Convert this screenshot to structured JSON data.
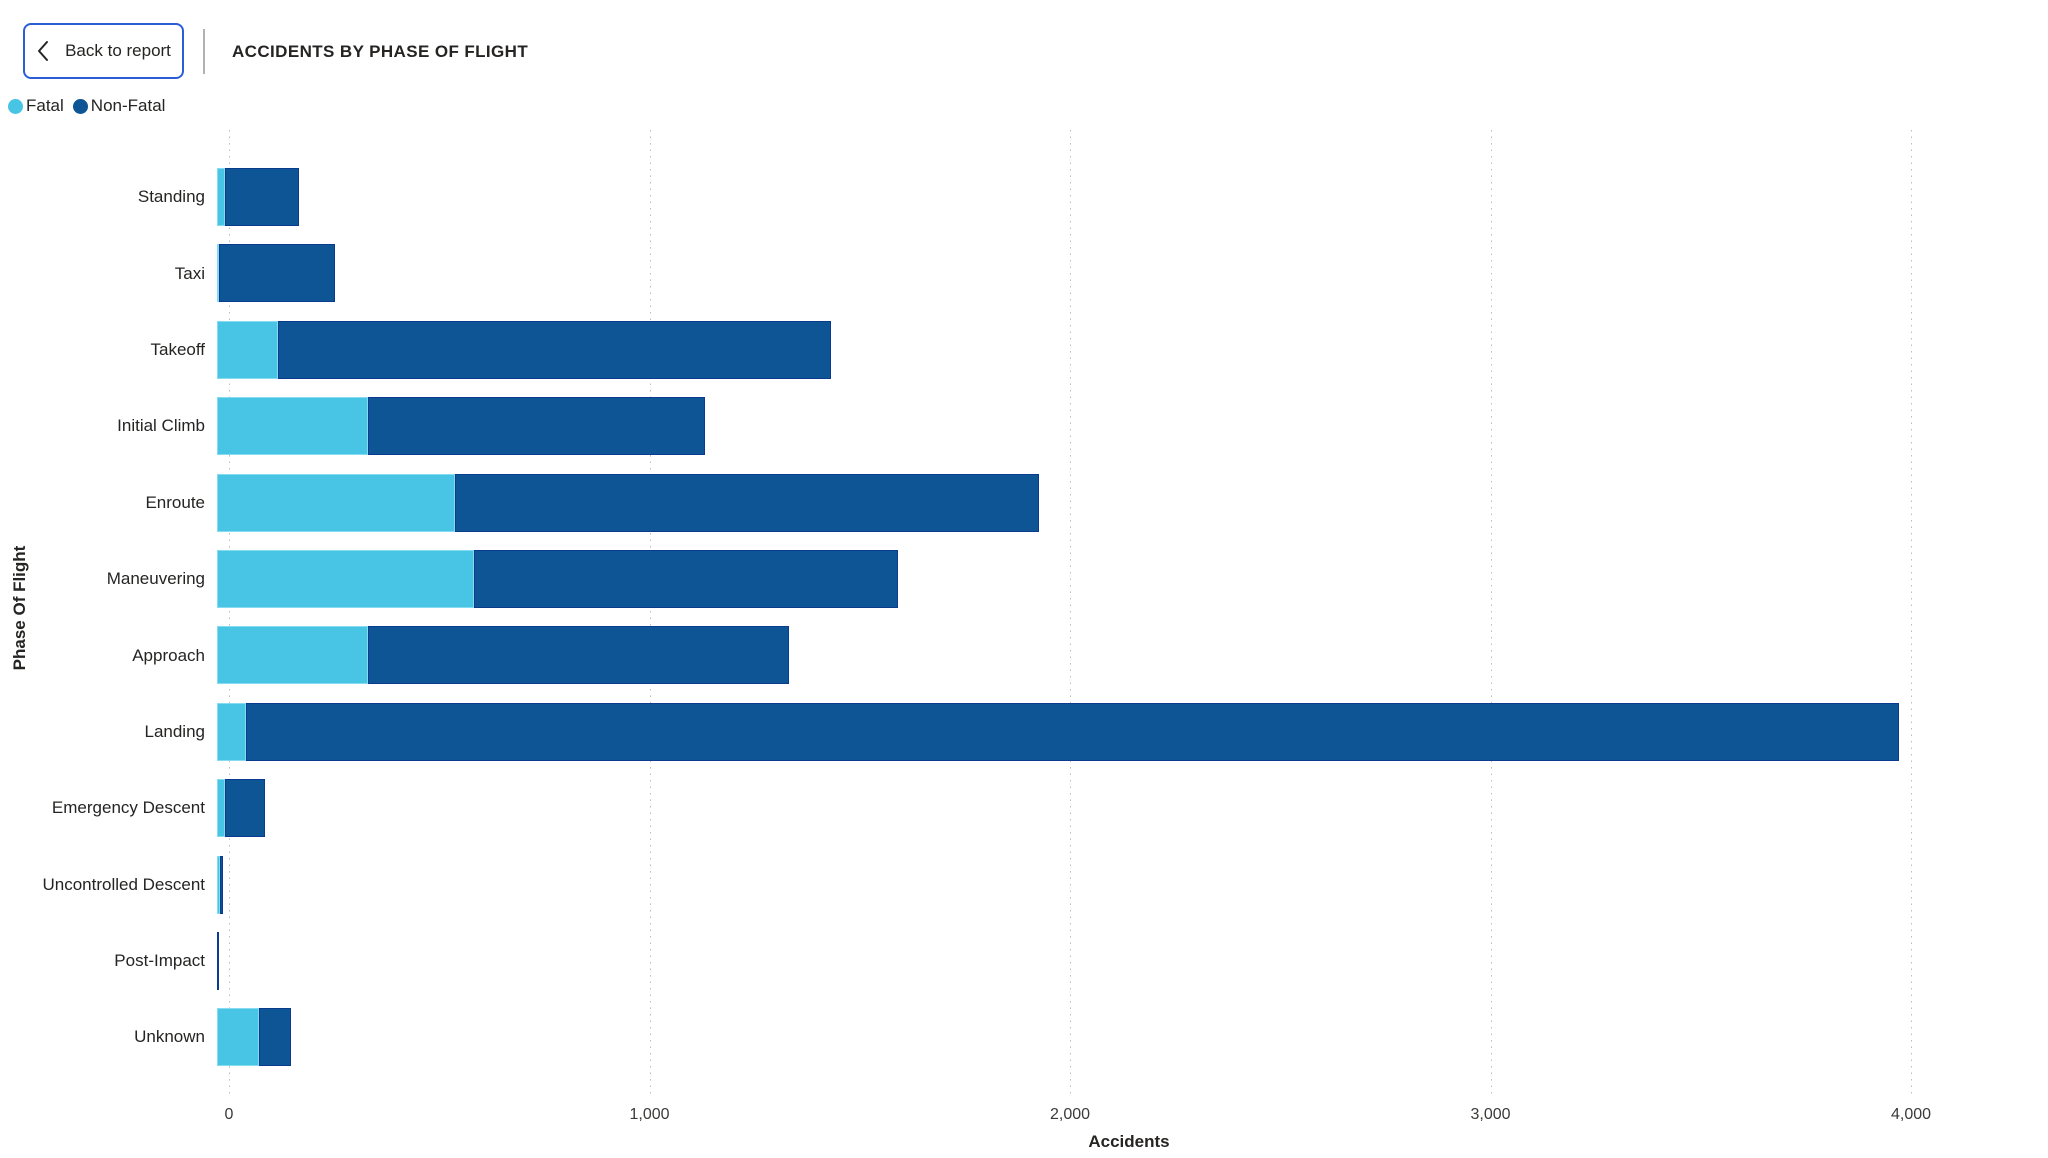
{
  "header": {
    "back_button_label": "Back to report",
    "title": "ACCIDENTS BY PHASE OF FLIGHT"
  },
  "legend": {
    "items": [
      {
        "label": "Fatal",
        "color": "#48C4E4"
      },
      {
        "label": "Non-Fatal",
        "color": "#0D5595"
      }
    ]
  },
  "colors": {
    "fatal": "#48C4E4",
    "non_fatal": "#0D5595",
    "button_border": "#2B5DD8",
    "gridline": "#BDBDBD"
  },
  "chart_data": {
    "type": "bar",
    "orientation": "horizontal",
    "stacked": true,
    "title": "ACCIDENTS BY PHASE OF FLIGHT",
    "xlabel": "Accidents",
    "ylabel": "Phase Of Flight",
    "xlim": [
      0,
      4000
    ],
    "xticks": [
      0,
      1000,
      2000,
      3000,
      4000
    ],
    "xtick_labels": [
      "0",
      "1,000",
      "2,000",
      "3,000",
      "4,000"
    ],
    "grid": "vertical-dotted",
    "legend_position": "top-left",
    "categories": [
      "Standing",
      "Taxi",
      "Takeoff",
      "Initial Climb",
      "Enroute",
      "Maneuvering",
      "Approach",
      "Landing",
      "Emergency Descent",
      "Uncontrolled Descent",
      "Post-Impact",
      "Unknown"
    ],
    "series": [
      {
        "name": "Fatal",
        "color": "#48C4E4",
        "values": [
          20,
          5,
          145,
          360,
          565,
          610,
          360,
          70,
          20,
          8,
          0,
          100
        ]
      },
      {
        "name": "Non-Fatal",
        "color": "#0D5595",
        "values": [
          175,
          275,
          1315,
          800,
          1390,
          1010,
          1000,
          3930,
          95,
          6,
          5,
          75
        ]
      }
    ]
  }
}
